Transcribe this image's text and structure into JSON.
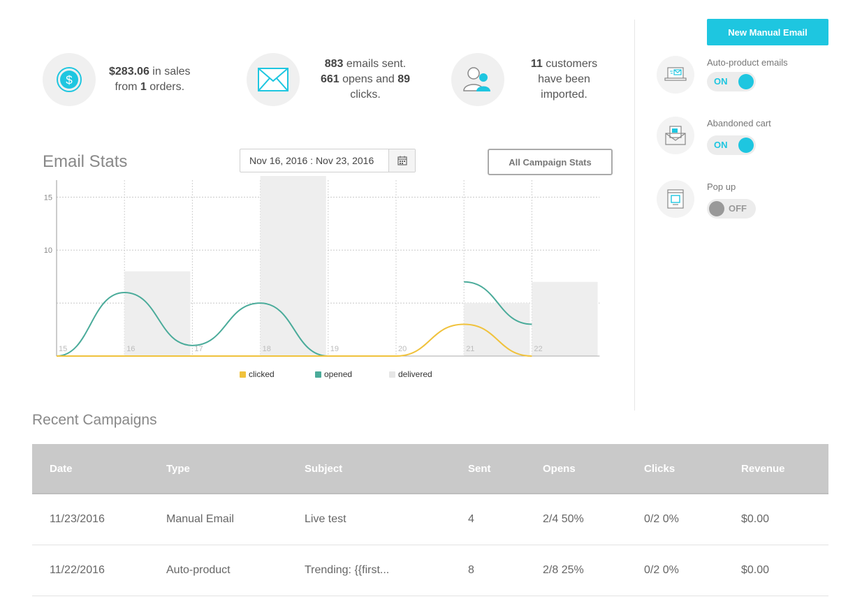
{
  "stats": {
    "sales": {
      "amount": "$283.06",
      "text1": " in sales",
      "text2": "from ",
      "orders": "1",
      "text3": " orders."
    },
    "emails": {
      "sent": "883",
      "text1": " emails sent.",
      "opens": "661",
      "text2": " opens and ",
      "clicks": "89",
      "text3": "clicks."
    },
    "customers": {
      "count": "11",
      "text1": " customers",
      "text2": "have been",
      "text3": "imported."
    }
  },
  "email_stats": {
    "title": "Email Stats",
    "date_range": "Nov 16, 2016 : Nov 23, 2016",
    "all_campaign_button": "All Campaign Stats"
  },
  "chart_data": {
    "type": "bar",
    "x": [
      "15",
      "16",
      "17",
      "18",
      "19",
      "20",
      "21",
      "22"
    ],
    "ylim": [
      0,
      17
    ],
    "yticks": [
      "10",
      "15"
    ],
    "series": [
      {
        "name": "delivered",
        "type": "bar",
        "color": "#eeeeee",
        "values": [
          0,
          8,
          0,
          17,
          0,
          0,
          5,
          7
        ]
      },
      {
        "name": "opened",
        "type": "line",
        "color": "#4aab9a",
        "values": [
          0,
          6,
          1,
          5,
          0,
          null,
          7,
          3
        ]
      },
      {
        "name": "clicked",
        "type": "line",
        "color": "#f0c23c",
        "values": [
          0,
          0,
          0,
          0,
          0,
          0,
          3,
          0
        ]
      }
    ],
    "legend": [
      "clicked",
      "opened",
      "delivered"
    ]
  },
  "right_panel": {
    "new_email_button": "New Manual Email",
    "automations": [
      {
        "label": "Auto-product emails",
        "state": "ON",
        "icon": "laptop-email-icon"
      },
      {
        "label": "Abandoned cart",
        "state": "ON",
        "icon": "envelope-letter-icon"
      },
      {
        "label": "Pop up",
        "state": "OFF",
        "icon": "popup-window-icon"
      }
    ]
  },
  "campaigns": {
    "title": "Recent Campaigns",
    "columns": [
      "Date",
      "Type",
      "Subject",
      "Sent",
      "Opens",
      "Clicks",
      "Revenue"
    ],
    "rows": [
      [
        "11/23/2016",
        "Manual Email",
        "Live test",
        "4",
        "2/4 50%",
        "0/2 0%",
        "$0.00"
      ],
      [
        "11/22/2016",
        "Auto-product",
        "Trending: {{first...",
        "8",
        "2/8 25%",
        "0/2 0%",
        "$0.00"
      ]
    ]
  },
  "colors": {
    "accent": "#1ec6e0",
    "opened": "#4aab9a",
    "clicked": "#f0c23c",
    "delivered": "#eeeeee"
  }
}
